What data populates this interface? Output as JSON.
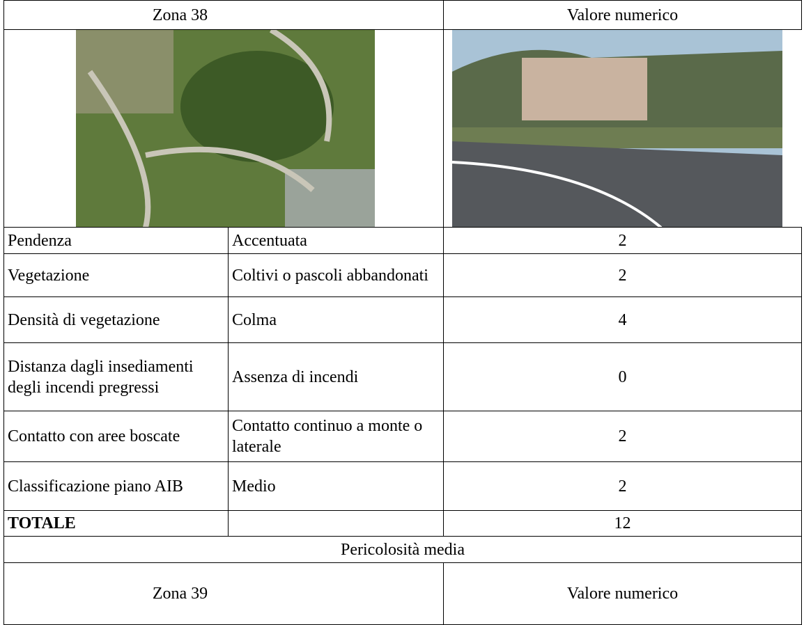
{
  "table": {
    "header": [
      "Zona 38",
      "Valore numerico"
    ],
    "rows": [
      [
        "Pendenza",
        "Accentuata",
        2
      ],
      [
        "Vegetazione",
        "Coltivi o pascoli abbandonati",
        2
      ],
      [
        "Densità di vegetazione",
        "Colma",
        4
      ],
      [
        "Distanza dagli insediamenti degli incendi pregressi",
        "Assenza di incendi",
        0
      ],
      [
        "Contatto con aree boscate",
        "Contatto continuo a monte o laterale",
        2
      ],
      [
        "Classificazione piano AIB",
        "Medio",
        2
      ]
    ],
    "total": [
      "TOTALE",
      12
    ],
    "result": "Pericolosità media",
    "next_header": [
      "Zona 39",
      "Valore numerico"
    ]
  }
}
